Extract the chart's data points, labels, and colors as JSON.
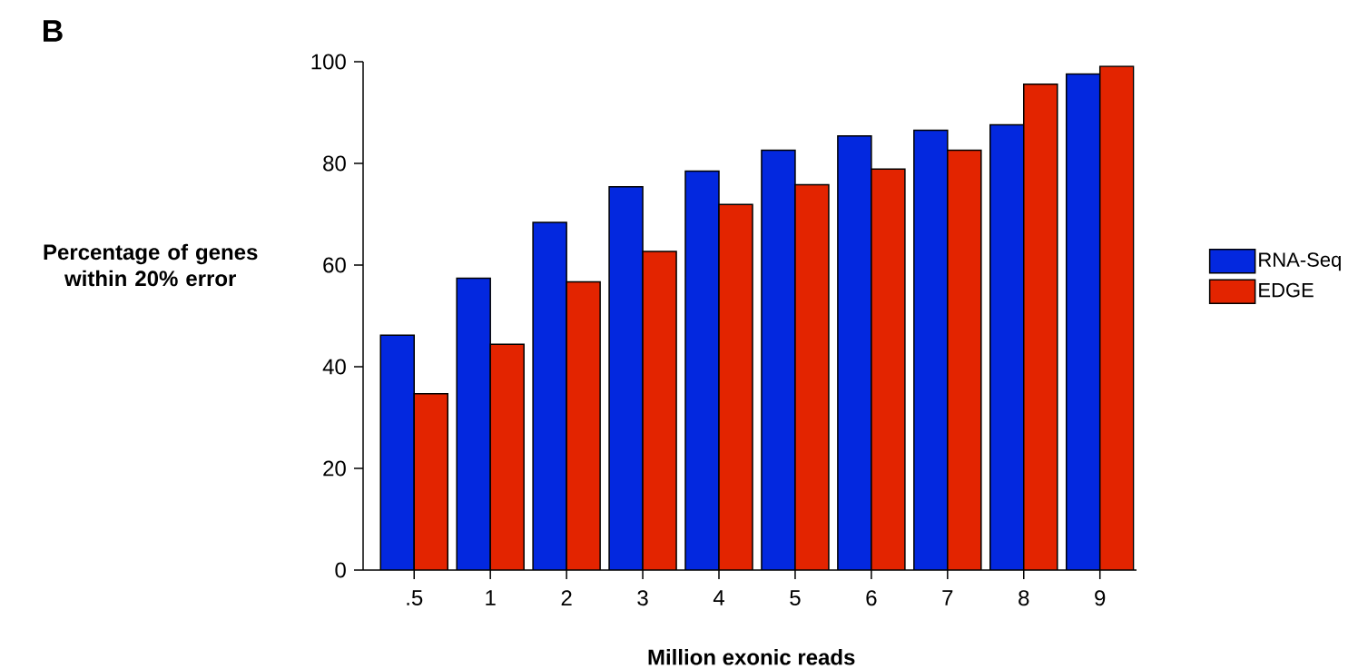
{
  "chart_data": {
    "type": "bar",
    "categories": [
      ".5",
      "1",
      "2",
      "3",
      "4",
      "5",
      "6",
      "7",
      "8",
      "9"
    ],
    "series": [
      {
        "name": "RNA-Seq",
        "color": "#0328df",
        "values": [
          46.2,
          57.4,
          68.4,
          75.4,
          78.5,
          82.6,
          85.4,
          86.5,
          87.6,
          97.6
        ]
      },
      {
        "name": "EDGE",
        "color": "#e32400",
        "values": [
          34.7,
          44.4,
          56.7,
          62.7,
          71.9,
          75.8,
          78.9,
          82.6,
          95.6,
          99.1
        ]
      }
    ],
    "xlabel": "Million exonic reads",
    "ylabel": "Percentage of genes within 20% error",
    "ylim": [
      0,
      100
    ],
    "yticks": [
      0,
      20,
      40,
      60,
      80,
      100
    ],
    "legend": "right",
    "annotations": [
      "B"
    ]
  }
}
